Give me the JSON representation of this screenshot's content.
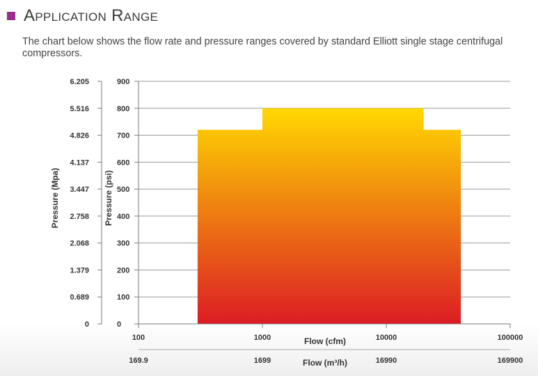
{
  "header": {
    "title": "Application Range",
    "accent_color": "#9b2d8e",
    "icon": "square-bullet-icon"
  },
  "intro": {
    "text": "The chart below shows the flow rate and pressure ranges covered by standard Elliott single stage centrifugal compressors."
  },
  "chart_data": {
    "type": "area",
    "x_scale": "log",
    "xlim": [
      100,
      100000
    ],
    "ylim": [
      0,
      900
    ],
    "grid": true,
    "x_ticks": [
      100,
      1000,
      10000,
      100000
    ],
    "x_tick_labels_primary": [
      "100",
      "1000",
      "10000",
      "100000"
    ],
    "x_tick_labels_secondary": [
      "169.9",
      "1699",
      "16990",
      "169900"
    ],
    "xlabel_primary": "Flow (cfm)",
    "xlabel_secondary": "Flow (m³/h)",
    "y_ticks": [
      0,
      100,
      200,
      300,
      400,
      500,
      600,
      700,
      800,
      900
    ],
    "y_tick_labels_primary": [
      "0",
      "100",
      "200",
      "300",
      "400",
      "500",
      "600",
      "700",
      "800",
      "900"
    ],
    "y_tick_labels_secondary": [
      "0",
      "0.689",
      "1.379",
      "2.068",
      "2.758",
      "3.447",
      "4.137",
      "4.826",
      "5.516",
      "6.205"
    ],
    "ylabel_primary": "Pressure (psi)",
    "ylabel_secondary": "Pressure (Mpa)",
    "region": {
      "x": [
        300,
        300,
        1000,
        1000,
        20000,
        20000,
        40000,
        40000
      ],
      "y": [
        0,
        720,
        720,
        800,
        800,
        720,
        720,
        0
      ],
      "color_top": "#ffd800",
      "color_bottom": "#dc1c24"
    }
  }
}
